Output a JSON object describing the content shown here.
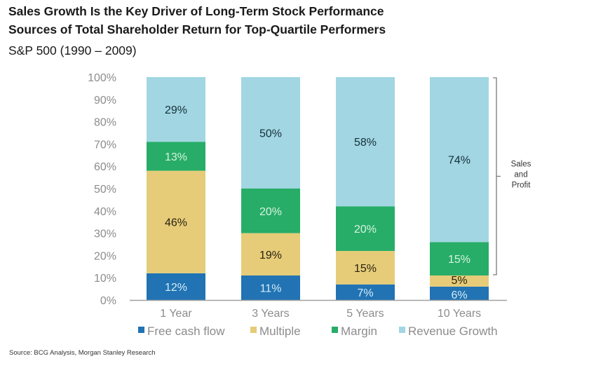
{
  "header": {
    "title": "Sales Growth Is the Key Driver of Long-Term Stock Performance",
    "subtitle": "Sources of Total Shareholder Return for Top-Quartile Performers",
    "scope": "S&P 500 (1990 – 2009)"
  },
  "footer": {
    "source": "Source: BCG Analysis, Morgan Stanley Research"
  },
  "chart_data": {
    "type": "bar",
    "stacked": true,
    "title": "Sources of Total Shareholder Return for Top-Quartile Performers",
    "xlabel": "",
    "ylabel": "",
    "ylim": [
      0,
      100
    ],
    "yticks": [
      0,
      10,
      20,
      30,
      40,
      50,
      60,
      70,
      80,
      90,
      100
    ],
    "ytick_labels": [
      "0%",
      "10%",
      "20%",
      "30%",
      "40%",
      "50%",
      "60%",
      "70%",
      "80%",
      "90%",
      "100%"
    ],
    "grid": false,
    "legend_position": "bottom",
    "categories": [
      "1 Year",
      "3 Years",
      "5 Years",
      "10 Years"
    ],
    "series": [
      {
        "name": "Free cash flow",
        "color": "#2173b3",
        "label_color": "#d6ecf7",
        "values": [
          12,
          11,
          7,
          6
        ]
      },
      {
        "name": "Multiple",
        "color": "#e6cc78",
        "label_color": "#2a2212",
        "values": [
          46,
          19,
          15,
          5
        ]
      },
      {
        "name": "Margin",
        "color": "#27ad68",
        "label_color": "#d8f3e0",
        "values": [
          13,
          20,
          20,
          15
        ]
      },
      {
        "name": "Revenue Growth",
        "color": "#a2d6e2",
        "label_color": "#14303a",
        "values": [
          29,
          50,
          58,
          74
        ]
      }
    ],
    "data_labels": [
      [
        "12%",
        "11%",
        "7%",
        "6%"
      ],
      [
        "46%",
        "19%",
        "15%",
        "5%"
      ],
      [
        "13%",
        "20%",
        "20%",
        "15%"
      ],
      [
        "29%",
        "50%",
        "58%",
        "74%"
      ]
    ],
    "annotations": [
      {
        "type": "bracket",
        "target": "10 Years",
        "series": [
          "Margin",
          "Revenue Growth"
        ],
        "text": [
          "Sales",
          "and",
          "Profit"
        ]
      }
    ],
    "axis_color": "#a0a0a0",
    "tick_label_color": "#8c8c8c"
  }
}
